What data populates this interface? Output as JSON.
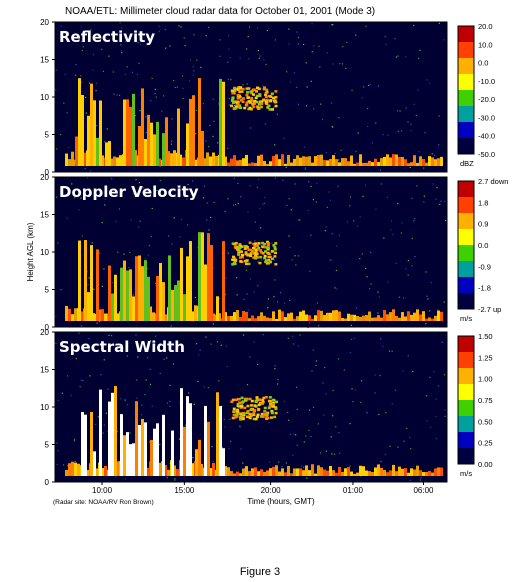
{
  "chart_data": {
    "type": "heatmap",
    "title": "NOAA/ETL: Millimeter cloud radar data for October 01, 2001 (Mode 3)",
    "ylabel": "Height AGL (km)",
    "xlabel": "Time (hours, GMT)",
    "credit": "(Radar site: NOAA/RV Ron Brown)",
    "ylim": [
      0,
      20
    ],
    "y_ticks": [
      "0",
      "5",
      "10",
      "15",
      "20"
    ],
    "x_ticks": [
      "10:00",
      "15:00",
      "20:00",
      "01:00",
      "06:00"
    ],
    "panels": [
      {
        "name": "Reflectivity",
        "unit": "dBZ",
        "colorbar_labels": [
          "20.0",
          "10.0",
          "0.0",
          "-10.0",
          "-20.0",
          "-30.0",
          "-40.0",
          "-50.0"
        ],
        "colorbar_colors": [
          "#c00000",
          "#ff4000",
          "#ffb000",
          "#ffff00",
          "#40d000",
          "#00a0a0",
          "#0000c0",
          "#000040"
        ]
      },
      {
        "name": "Doppler Velocity",
        "unit": "m/s",
        "colorbar_labels": [
          "2.7 down",
          "1.8",
          "0.9",
          "0.0",
          "-0.9",
          "-1.8",
          "-2.7 up"
        ],
        "colorbar_colors": [
          "#c00000",
          "#ff4000",
          "#ffb000",
          "#ffff00",
          "#40d000",
          "#00a0a0",
          "#0000c0",
          "#000040"
        ]
      },
      {
        "name": "Spectral Width",
        "unit": "m/s",
        "colorbar_labels": [
          "1.50",
          "1.25",
          "1.00",
          "0.75",
          "0.50",
          "0.25",
          "0.00"
        ],
        "colorbar_colors": [
          "#c00000",
          "#ff4000",
          "#ffb000",
          "#ffff00",
          "#40d000",
          "#00a0a0",
          "#0000c0",
          "#000040"
        ]
      }
    ],
    "background_color": "#000033"
  },
  "caption": "Figure 3"
}
